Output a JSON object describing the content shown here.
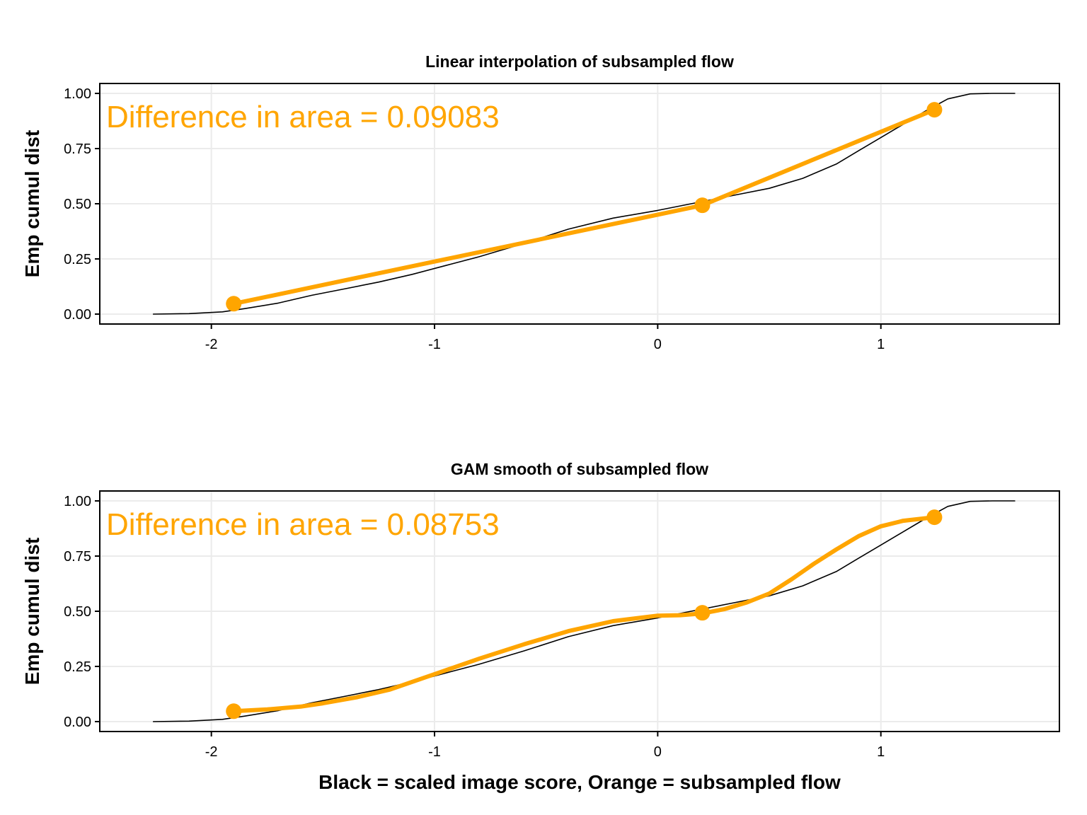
{
  "colors": {
    "orange": "#FFA500",
    "black": "#000000",
    "grid": "#EBEBEB"
  },
  "shared": {
    "xlabel": "Black = scaled image score, Orange = subsampled flow"
  },
  "chart_data": [
    {
      "type": "line",
      "title": "Linear interpolation of subsampled flow",
      "ylabel": "Emp cumul dist",
      "annotation": "Difference in area = 0.09083",
      "xlim": [
        -2.5,
        1.8
      ],
      "ylim": [
        -0.045,
        1.045
      ],
      "xticks": [
        -2,
        -1,
        0,
        1
      ],
      "xtick_labels": [
        "-2",
        "-1",
        "0",
        "1"
      ],
      "yticks": [
        0,
        0.25,
        0.5,
        0.75,
        1
      ],
      "ytick_labels": [
        "0.00",
        "0.25",
        "0.50",
        "0.75",
        "1.00"
      ],
      "grid": true,
      "series": [
        {
          "color": "black",
          "x": [
            -2.26,
            -2.1,
            -1.95,
            -1.85,
            -1.7,
            -1.55,
            -1.4,
            -1.25,
            -1.1,
            -0.95,
            -0.8,
            -0.6,
            -0.4,
            -0.2,
            0.0,
            0.1,
            0.2,
            0.35,
            0.5,
            0.65,
            0.8,
            0.9,
            1.0,
            1.1,
            1.2,
            1.3,
            1.4,
            1.5,
            1.6
          ],
          "y": [
            0.0,
            0.002,
            0.01,
            0.025,
            0.05,
            0.085,
            0.115,
            0.145,
            0.18,
            0.22,
            0.26,
            0.32,
            0.385,
            0.435,
            0.47,
            0.49,
            0.51,
            0.54,
            0.57,
            0.615,
            0.68,
            0.74,
            0.8,
            0.86,
            0.92,
            0.975,
            0.998,
            1.0,
            1.0
          ]
        },
        {
          "color": "orange",
          "x": [
            -1.9,
            0.2,
            1.24
          ],
          "y": [
            0.047,
            0.493,
            0.926
          ],
          "markers": true
        }
      ]
    },
    {
      "type": "line",
      "title": "GAM smooth of subsampled flow",
      "ylabel": "Emp cumul dist",
      "annotation": "Difference in area = 0.08753",
      "xlim": [
        -2.5,
        1.8
      ],
      "ylim": [
        -0.045,
        1.045
      ],
      "xticks": [
        -2,
        -1,
        0,
        1
      ],
      "xtick_labels": [
        "-2",
        "-1",
        "0",
        "1"
      ],
      "yticks": [
        0,
        0.25,
        0.5,
        0.75,
        1
      ],
      "ytick_labels": [
        "0.00",
        "0.25",
        "0.50",
        "0.75",
        "1.00"
      ],
      "grid": true,
      "series": [
        {
          "color": "black",
          "x": [
            -2.26,
            -2.1,
            -1.95,
            -1.85,
            -1.7,
            -1.55,
            -1.4,
            -1.25,
            -1.1,
            -0.95,
            -0.8,
            -0.6,
            -0.4,
            -0.2,
            0.0,
            0.1,
            0.2,
            0.35,
            0.5,
            0.65,
            0.8,
            0.9,
            1.0,
            1.1,
            1.2,
            1.3,
            1.4,
            1.5,
            1.6
          ],
          "y": [
            0.0,
            0.002,
            0.01,
            0.025,
            0.05,
            0.085,
            0.115,
            0.145,
            0.18,
            0.22,
            0.26,
            0.32,
            0.385,
            0.435,
            0.47,
            0.49,
            0.51,
            0.54,
            0.57,
            0.615,
            0.68,
            0.74,
            0.8,
            0.86,
            0.92,
            0.975,
            0.998,
            1.0,
            1.0
          ]
        },
        {
          "color": "orange",
          "x": [
            -1.9,
            -1.75,
            -1.6,
            -1.5,
            -1.35,
            -1.2,
            -1.0,
            -0.8,
            -0.6,
            -0.4,
            -0.2,
            0.0,
            0.1,
            0.2,
            0.3,
            0.4,
            0.5,
            0.6,
            0.7,
            0.8,
            0.9,
            1.0,
            1.1,
            1.24
          ],
          "y": [
            0.047,
            0.055,
            0.068,
            0.083,
            0.11,
            0.145,
            0.215,
            0.285,
            0.35,
            0.41,
            0.455,
            0.48,
            0.482,
            0.49,
            0.51,
            0.54,
            0.58,
            0.645,
            0.715,
            0.78,
            0.84,
            0.885,
            0.91,
            0.926
          ]
        },
        {
          "color": "orange",
          "x": [
            -1.9,
            0.2,
            1.24
          ],
          "y": [
            0.047,
            0.493,
            0.926
          ],
          "markers": true,
          "points_only": true
        }
      ]
    }
  ]
}
